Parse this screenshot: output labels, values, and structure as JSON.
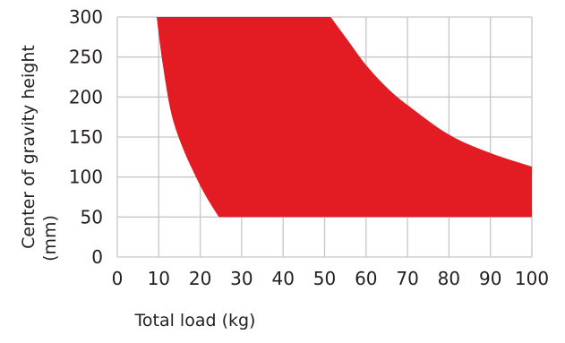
{
  "chart_data": {
    "type": "area",
    "title": "",
    "xlabel": "Total load (kg)",
    "ylabel_lines": [
      "Center of gravity height",
      "(mm)"
    ],
    "xlim": [
      0,
      100
    ],
    "ylim": [
      0,
      300
    ],
    "x_ticks": [
      "0",
      "10",
      "20",
      "30",
      "40",
      "50",
      "60",
      "70",
      "80",
      "90",
      "100"
    ],
    "y_ticks": [
      "0",
      "50",
      "100",
      "150",
      "200",
      "250",
      "300"
    ],
    "grid": true,
    "fill_color": "#e31b23",
    "grid_color": "#c6c6c6",
    "region": {
      "name": "",
      "left_boundary": [
        {
          "x": 9.5,
          "y": 300
        },
        {
          "x": 11,
          "y": 240
        },
        {
          "x": 13,
          "y": 180
        },
        {
          "x": 15.5,
          "y": 140
        },
        {
          "x": 18.5,
          "y": 105
        },
        {
          "x": 21.5,
          "y": 75
        },
        {
          "x": 24.5,
          "y": 50
        }
      ],
      "bottom_boundary": [
        {
          "x": 24.5,
          "y": 50
        },
        {
          "x": 100,
          "y": 50
        }
      ],
      "right_boundary": [
        {
          "x": 100,
          "y": 50
        },
        {
          "x": 100,
          "y": 113
        },
        {
          "x": 90,
          "y": 130
        },
        {
          "x": 80,
          "y": 153
        },
        {
          "x": 70,
          "y": 190
        },
        {
          "x": 65,
          "y": 212
        },
        {
          "x": 60,
          "y": 240
        },
        {
          "x": 56,
          "y": 268
        },
        {
          "x": 51.5,
          "y": 300
        }
      ]
    }
  }
}
